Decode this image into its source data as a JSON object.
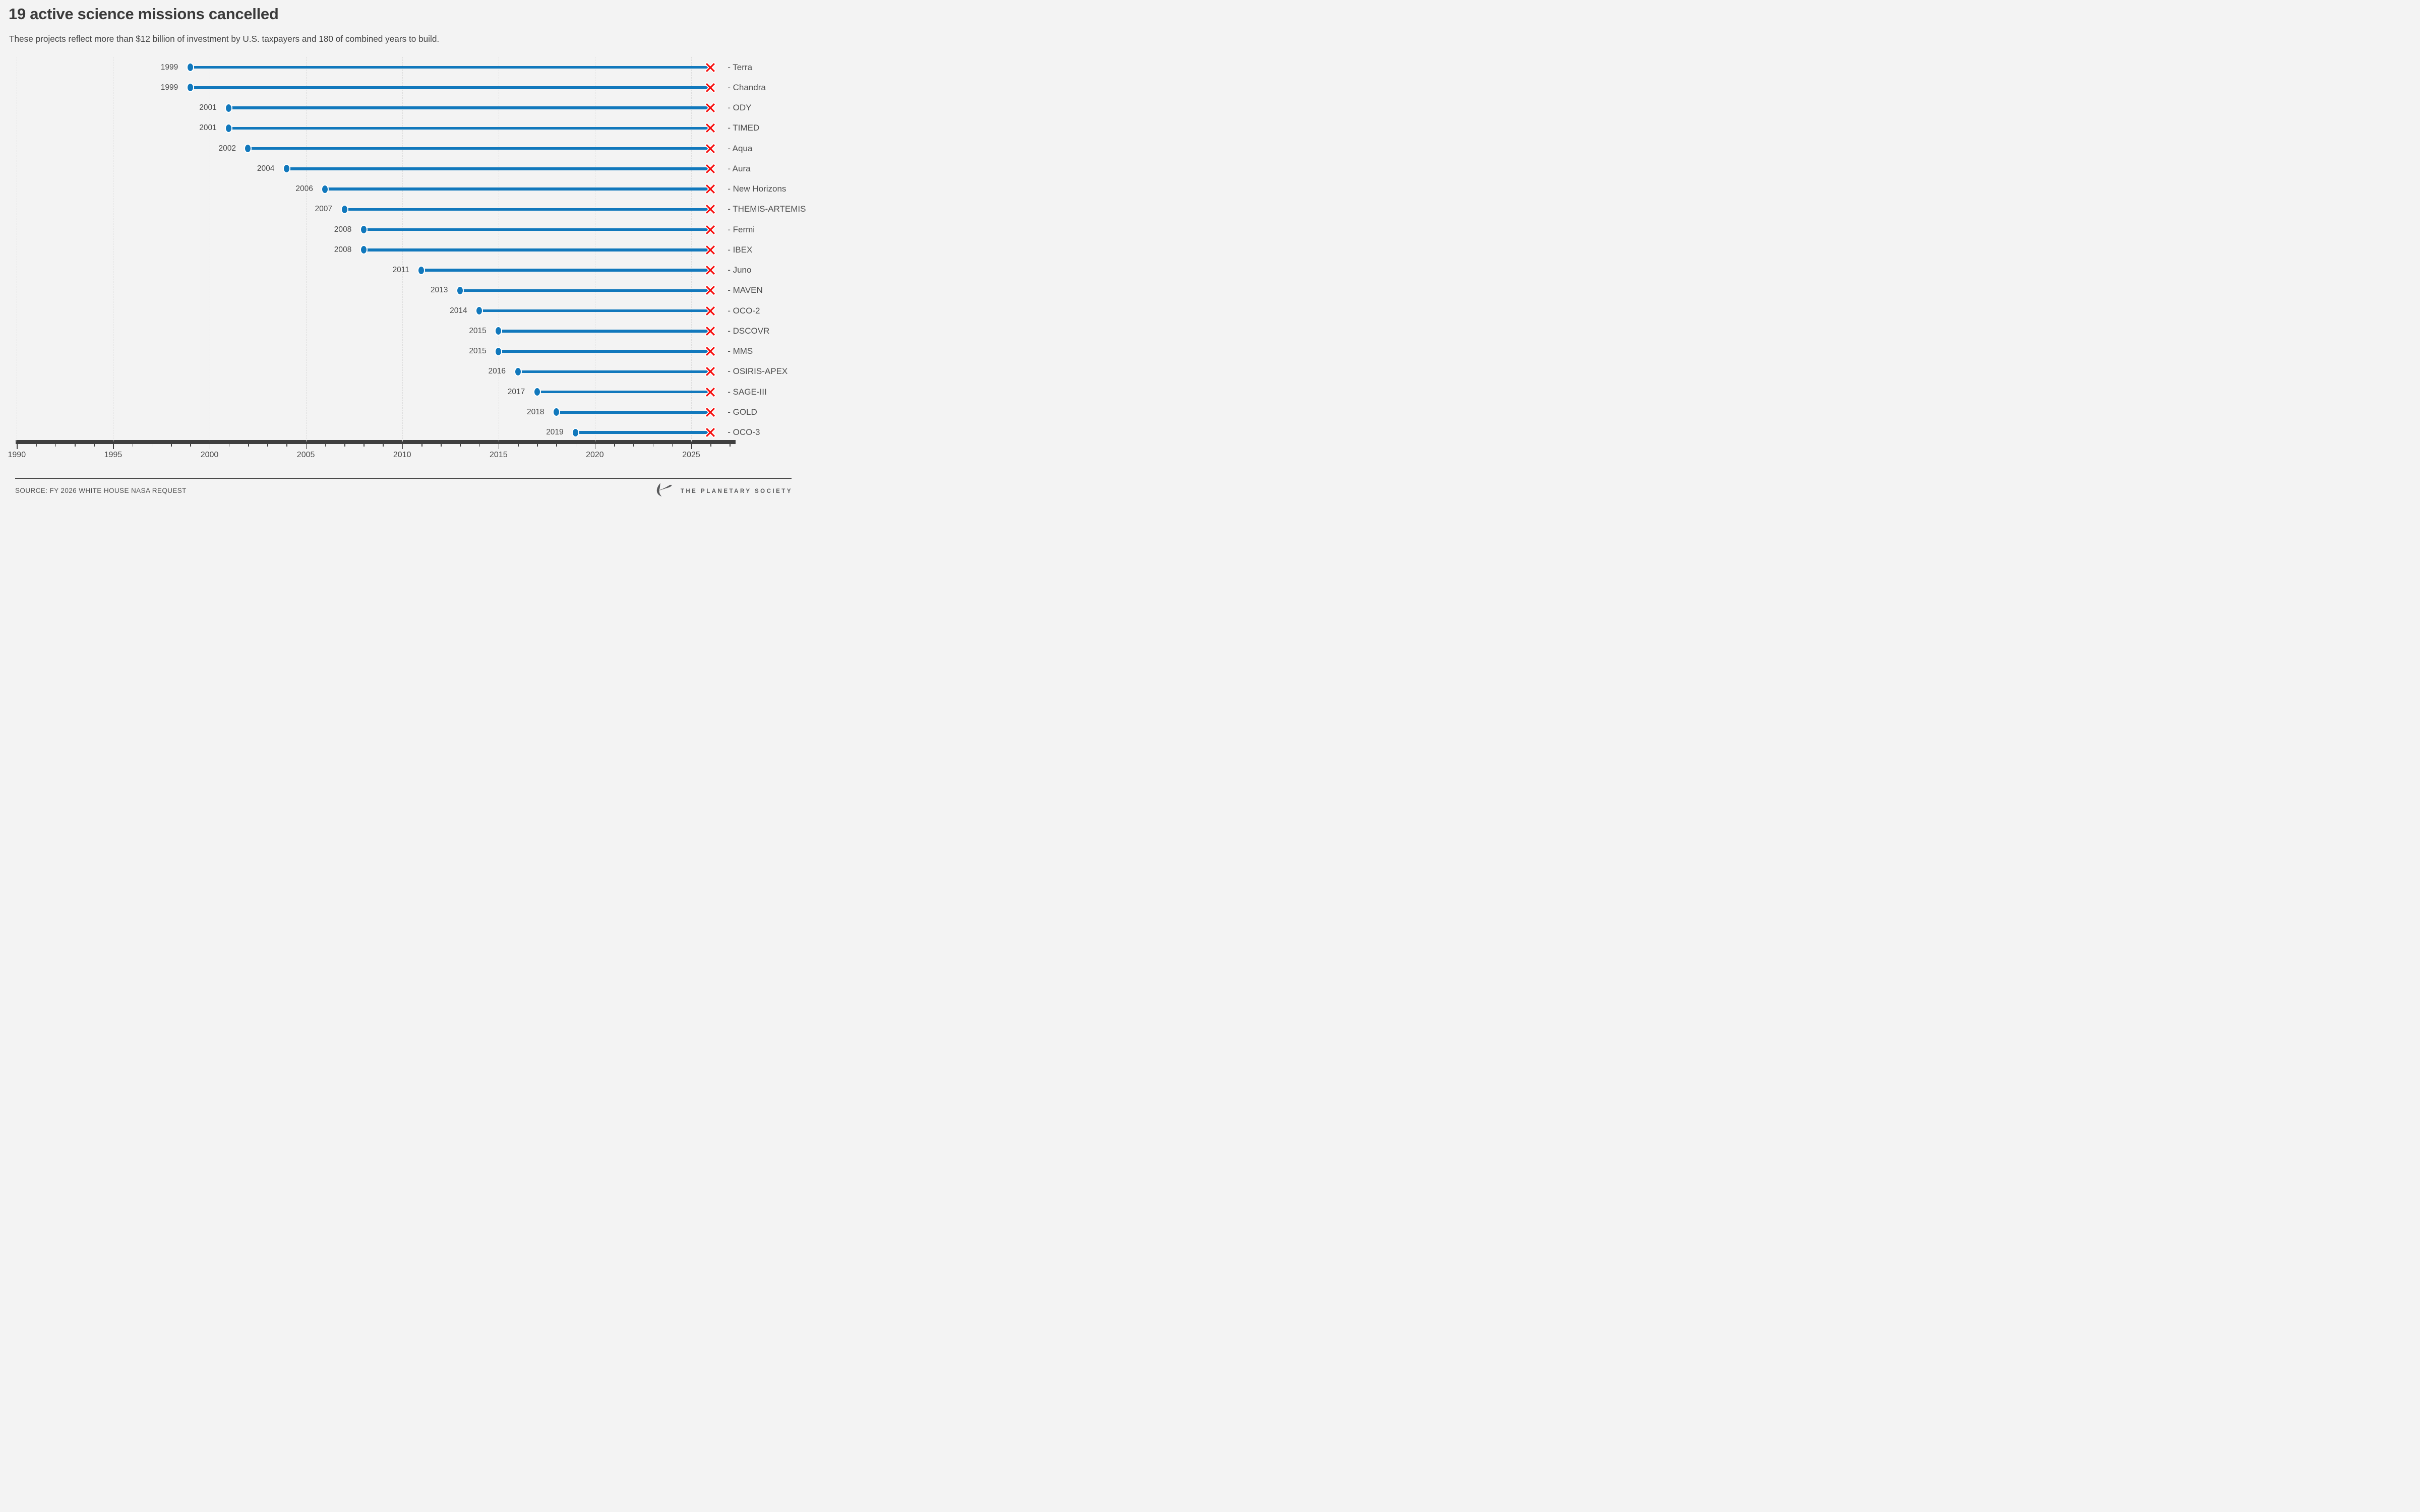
{
  "header": {
    "title": "19 active science missions cancelled",
    "subtitle": "These projects reflect more than $12 billion of investment by U.S. taxpayers and 180 of combined years to build."
  },
  "colors": {
    "background": "#f3f3f3",
    "bar_blue": "#1178bc",
    "cancel_red": "#f50d0d",
    "axis_dark": "#3f3f3f",
    "gridline_gray": "#dcdcdc",
    "title_gray": "#3b3b3b",
    "logo_gray": "#58595b"
  },
  "chart_data": {
    "type": "bar",
    "orientation": "horizontal-timeline",
    "title": "19 active science missions cancelled",
    "categories": [
      "Terra",
      "Chandra",
      "ODY",
      "TIMED",
      "Aqua",
      "Aura",
      "New Horizons",
      "THEMIS-ARTEMIS",
      "Fermi",
      "IBEX",
      "Juno",
      "MAVEN",
      "OCO-2",
      "DSCOVR",
      "MMS",
      "OSIRIS-APEX",
      "SAGE-III",
      "GOLD",
      "OCO-3"
    ],
    "values": [
      1999,
      1999,
      2001,
      2001,
      2002,
      2004,
      2006,
      2007,
      2008,
      2008,
      2011,
      2013,
      2014,
      2015,
      2015,
      2016,
      2017,
      2018,
      2019
    ],
    "end_year": 2026,
    "label_prefix": "- ",
    "x_axis": {
      "range": [
        1990,
        2027.3
      ],
      "tick_labels": [
        "1990",
        "1995",
        "2000",
        "2005",
        "2010",
        "2015",
        "2020",
        "2025"
      ],
      "gridline_years": [
        1990,
        1995,
        2000,
        2005,
        2010,
        2015,
        2020,
        2025
      ],
      "minor_tick_years": [
        1990,
        2027
      ],
      "grid": "dashed"
    },
    "legend": "none",
    "marker_start": "launch-year-dot",
    "marker_end": "cancelled-x"
  },
  "footer": {
    "source": "SOURCE: FY 2026 WHITE HOUSE NASA REQUEST",
    "logo_text": "THE PLANETARY SOCIETY"
  }
}
